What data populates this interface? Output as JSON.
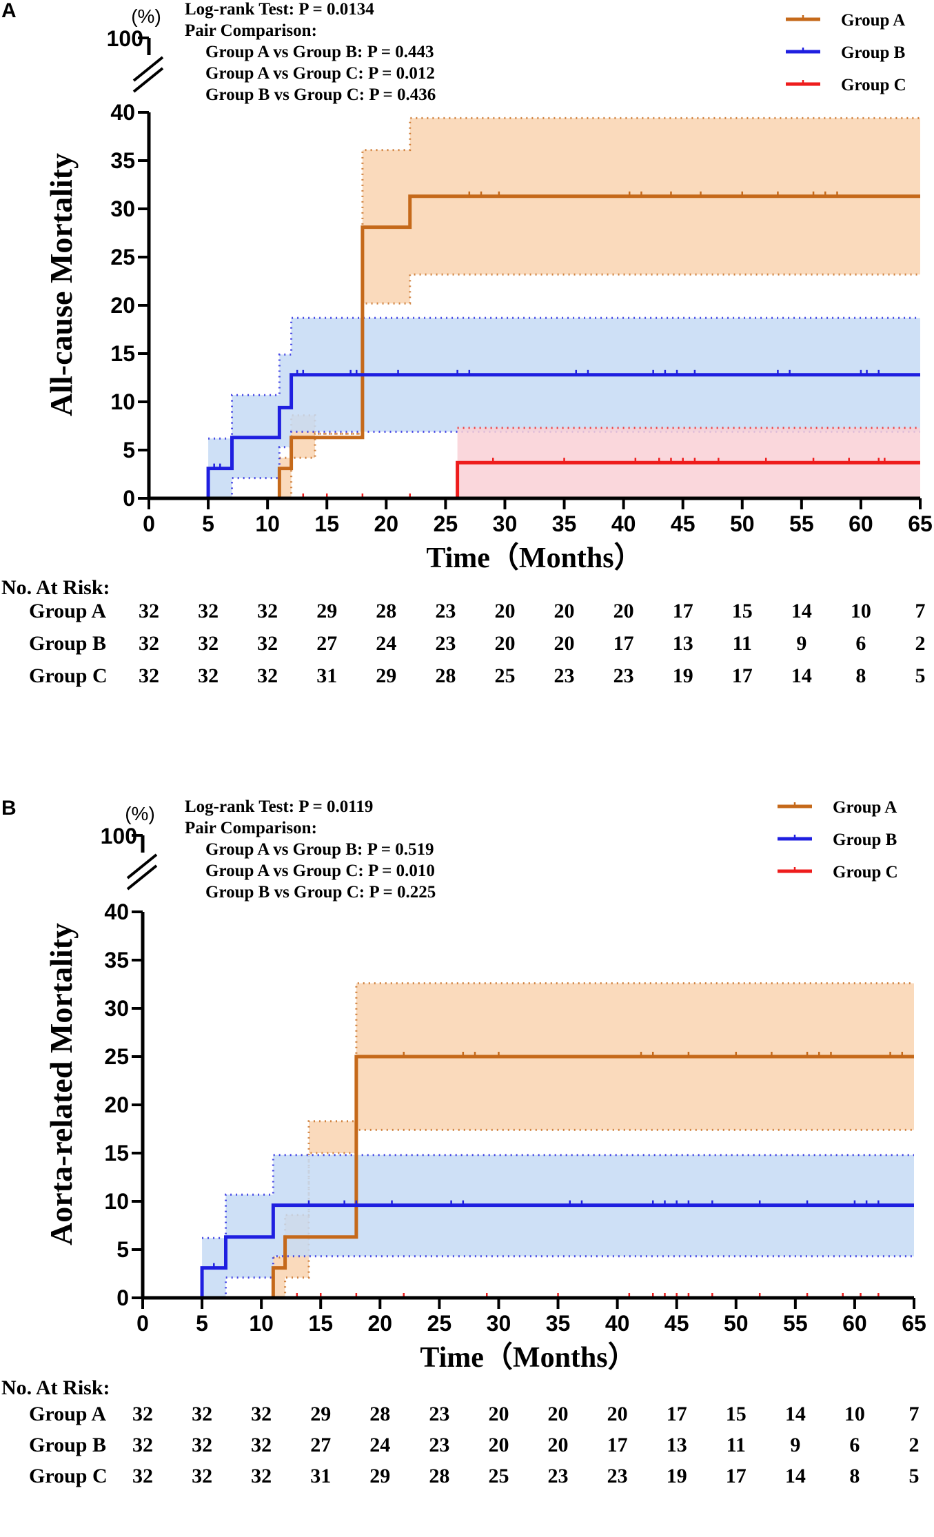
{
  "chart_data": [
    {
      "type": "line",
      "panel_label": "A",
      "title": "",
      "ylabel": "All-cause Mortality",
      "y_unit": "(%)",
      "xlabel": "Time（Months）",
      "xlim": [
        0,
        65
      ],
      "ylim": [
        0,
        40
      ],
      "y_break_top_value": "100",
      "x_ticks": [
        "0",
        "5",
        "10",
        "15",
        "20",
        "25",
        "30",
        "35",
        "40",
        "45",
        "50",
        "55",
        "60",
        "65"
      ],
      "y_ticks": [
        "0",
        "5",
        "10",
        "15",
        "20",
        "25",
        "30",
        "35",
        "40"
      ],
      "stats": [
        "Log-rank Test: P = 0.0134",
        "Pair Comparison:",
        "Group A vs Group B: P = 0.443",
        "Group A vs Group C: P = 0.012",
        "Group B vs Group C: P = 0.436"
      ],
      "series": [
        {
          "name": "Group A",
          "color": "#C5691A",
          "band_color": "#F9D3B0",
          "steps": [
            [
              0,
              0
            ],
            [
              11,
              0
            ],
            [
              11,
              3.1
            ],
            [
              12,
              3.1
            ],
            [
              12,
              6.3
            ],
            [
              18,
              6.3
            ],
            [
              18,
              28.1
            ],
            [
              22,
              28.1
            ],
            [
              22,
              31.3
            ],
            [
              65,
              31.3
            ]
          ],
          "lower": [
            [
              11,
              0
            ],
            [
              12,
              0
            ],
            [
              12,
              4.2
            ],
            [
              14,
              4.2
            ],
            [
              14,
              6.7
            ],
            [
              18,
              6.7
            ],
            [
              18,
              20.2
            ],
            [
              22,
              20.2
            ],
            [
              22,
              23.2
            ],
            [
              65,
              23.2
            ]
          ],
          "upper": [
            [
              11,
              4.2
            ],
            [
              12,
              4.2
            ],
            [
              12,
              8.6
            ],
            [
              14,
              8.6
            ],
            [
              14,
              6.7
            ],
            [
              18,
              6.7
            ],
            [
              18,
              36.1
            ],
            [
              22,
              36.1
            ],
            [
              22,
              39.4
            ],
            [
              65,
              39.4
            ]
          ],
          "censor": [
            27,
            28,
            29.5,
            40.5,
            41.5,
            44,
            46.5,
            50,
            53,
            56,
            57,
            58
          ]
        },
        {
          "name": "Group B",
          "color": "#1F1FE0",
          "band_color": "#C6DAF4",
          "steps": [
            [
              0,
              0
            ],
            [
              5,
              0
            ],
            [
              5,
              3.1
            ],
            [
              7,
              3.1
            ],
            [
              7,
              6.3
            ],
            [
              11,
              6.3
            ],
            [
              11,
              9.4
            ],
            [
              12,
              9.4
            ],
            [
              12,
              12.8
            ],
            [
              65,
              12.8
            ]
          ],
          "lower": [
            [
              5,
              0
            ],
            [
              7,
              0
            ],
            [
              7,
              2.1
            ],
            [
              11,
              2.1
            ],
            [
              11,
              5.3
            ],
            [
              12,
              5.3
            ],
            [
              12,
              6.9
            ],
            [
              65,
              6.9
            ]
          ],
          "upper": [
            [
              5,
              6.2
            ],
            [
              7,
              6.2
            ],
            [
              7,
              10.7
            ],
            [
              11,
              10.7
            ],
            [
              11,
              14.9
            ],
            [
              12,
              14.9
            ],
            [
              12,
              18.7
            ],
            [
              65,
              18.7
            ]
          ],
          "censor": [
            5.5,
            6,
            12.5,
            13,
            17,
            17.5,
            21,
            26,
            27,
            36,
            37,
            42.5,
            43.5,
            44.5,
            46,
            53,
            54,
            60,
            60.5,
            61.5
          ]
        },
        {
          "name": "Group C",
          "color": "#EE1C1C",
          "band_color": "#F9D0D6",
          "steps": [
            [
              0,
              0
            ],
            [
              26,
              0
            ],
            [
              26,
              3.7
            ],
            [
              65,
              3.7
            ]
          ],
          "lower": [
            [
              26,
              0
            ],
            [
              65,
              0
            ]
          ],
          "upper": [
            [
              26,
              7.3
            ],
            [
              65,
              7.3
            ]
          ],
          "censor": [
            13,
            15,
            18,
            22,
            29,
            35,
            41,
            43,
            44,
            45,
            46,
            48,
            52,
            56,
            59,
            61.5,
            62
          ]
        }
      ],
      "risk_table": {
        "title": "No. At Risk:",
        "times": [
          0,
          5,
          10,
          15,
          20,
          25,
          30,
          35,
          40,
          45,
          50,
          55,
          60,
          65
        ],
        "rows": [
          {
            "label": "Group A",
            "values": [
              "32",
              "32",
              "32",
              "29",
              "28",
              "23",
              "20",
              "20",
              "20",
              "17",
              "15",
              "14",
              "10",
              "7"
            ]
          },
          {
            "label": "Group B",
            "values": [
              "32",
              "32",
              "32",
              "27",
              "24",
              "23",
              "20",
              "20",
              "17",
              "13",
              "11",
              "9",
              "6",
              "2"
            ]
          },
          {
            "label": "Group C",
            "values": [
              "32",
              "32",
              "32",
              "31",
              "29",
              "28",
              "25",
              "23",
              "23",
              "19",
              "17",
              "14",
              "8",
              "5"
            ]
          }
        ]
      }
    },
    {
      "type": "line",
      "panel_label": "B",
      "title": "",
      "ylabel": "Aorta-related Mortality",
      "y_unit": "(%)",
      "xlabel": "Time（Months）",
      "xlim": [
        0,
        65
      ],
      "ylim": [
        0,
        40
      ],
      "y_break_top_value": "100",
      "x_ticks": [
        "0",
        "5",
        "10",
        "15",
        "20",
        "25",
        "30",
        "35",
        "40",
        "45",
        "50",
        "55",
        "60",
        "65"
      ],
      "y_ticks": [
        "0",
        "5",
        "10",
        "15",
        "20",
        "25",
        "30",
        "35",
        "40"
      ],
      "stats": [
        "Log-rank Test: P = 0.0119",
        "Pair Comparison:",
        "Group A vs Group B: P = 0.519",
        "Group A vs Group C: P = 0.010",
        "Group B vs Group C: P = 0.225"
      ],
      "series": [
        {
          "name": "Group A",
          "color": "#C5691A",
          "band_color": "#F9D3B0",
          "steps": [
            [
              0,
              0
            ],
            [
              11,
              0
            ],
            [
              11,
              3.1
            ],
            [
              12,
              3.1
            ],
            [
              12,
              6.3
            ],
            [
              18,
              6.3
            ],
            [
              18,
              25
            ],
            [
              65,
              25
            ]
          ],
          "lower": [
            [
              11,
              0
            ],
            [
              12,
              0
            ],
            [
              12,
              2.1
            ],
            [
              14,
              2.1
            ],
            [
              14,
              15.0
            ],
            [
              18,
              15.0
            ],
            [
              18,
              17.4
            ],
            [
              65,
              17.4
            ]
          ],
          "upper": [
            [
              11,
              4.2
            ],
            [
              12,
              4.2
            ],
            [
              12,
              8.6
            ],
            [
              14,
              8.6
            ],
            [
              14,
              18.3
            ],
            [
              18,
              18.3
            ],
            [
              18,
              32.6
            ],
            [
              65,
              32.6
            ]
          ],
          "censor": [
            22,
            27,
            28,
            30,
            42,
            43,
            46,
            50,
            53,
            56,
            57,
            58,
            63,
            64
          ]
        },
        {
          "name": "Group B",
          "color": "#1F1FE0",
          "band_color": "#C6DAF4",
          "steps": [
            [
              0,
              0
            ],
            [
              5,
              0
            ],
            [
              5,
              3.1
            ],
            [
              7,
              3.1
            ],
            [
              7,
              6.3
            ],
            [
              11,
              6.3
            ],
            [
              11,
              9.6
            ],
            [
              65,
              9.6
            ]
          ],
          "lower": [
            [
              5,
              0
            ],
            [
              7,
              0
            ],
            [
              7,
              2.1
            ],
            [
              11,
              2.1
            ],
            [
              11,
              4.3
            ],
            [
              65,
              4.3
            ]
          ],
          "upper": [
            [
              5,
              6.2
            ],
            [
              7,
              6.2
            ],
            [
              7,
              10.7
            ],
            [
              11,
              10.7
            ],
            [
              11,
              14.8
            ],
            [
              65,
              14.8
            ]
          ],
          "censor": [
            6,
            14,
            17,
            18,
            21,
            26,
            27,
            36,
            37,
            43,
            44,
            45,
            46,
            48,
            52,
            56,
            60,
            61,
            62
          ]
        },
        {
          "name": "Group C",
          "color": "#EE1C1C",
          "band_color": "#F9D0D6",
          "steps": [
            [
              0,
              0
            ],
            [
              65,
              0
            ]
          ],
          "lower": [
            [
              0,
              0
            ],
            [
              65,
              0
            ]
          ],
          "upper": [
            [
              0,
              0
            ],
            [
              65,
              0
            ]
          ],
          "censor": [
            13,
            15,
            18,
            22,
            29,
            35,
            41,
            43,
            44,
            45,
            46,
            48,
            52,
            56,
            59,
            60.5,
            62
          ]
        }
      ],
      "risk_table": {
        "title": "No. At Risk:",
        "times": [
          0,
          5,
          10,
          15,
          20,
          25,
          30,
          35,
          40,
          45,
          50,
          55,
          60,
          65
        ],
        "rows": [
          {
            "label": "Group A",
            "values": [
              "32",
              "32",
              "32",
              "29",
              "28",
              "23",
              "20",
              "20",
              "20",
              "17",
              "15",
              "14",
              "10",
              "7"
            ]
          },
          {
            "label": "Group B",
            "values": [
              "32",
              "32",
              "32",
              "27",
              "24",
              "23",
              "20",
              "20",
              "17",
              "13",
              "11",
              "9",
              "6",
              "2"
            ]
          },
          {
            "label": "Group C",
            "values": [
              "32",
              "32",
              "32",
              "31",
              "29",
              "28",
              "25",
              "23",
              "23",
              "19",
              "17",
              "14",
              "8",
              "5"
            ]
          }
        ]
      }
    }
  ]
}
